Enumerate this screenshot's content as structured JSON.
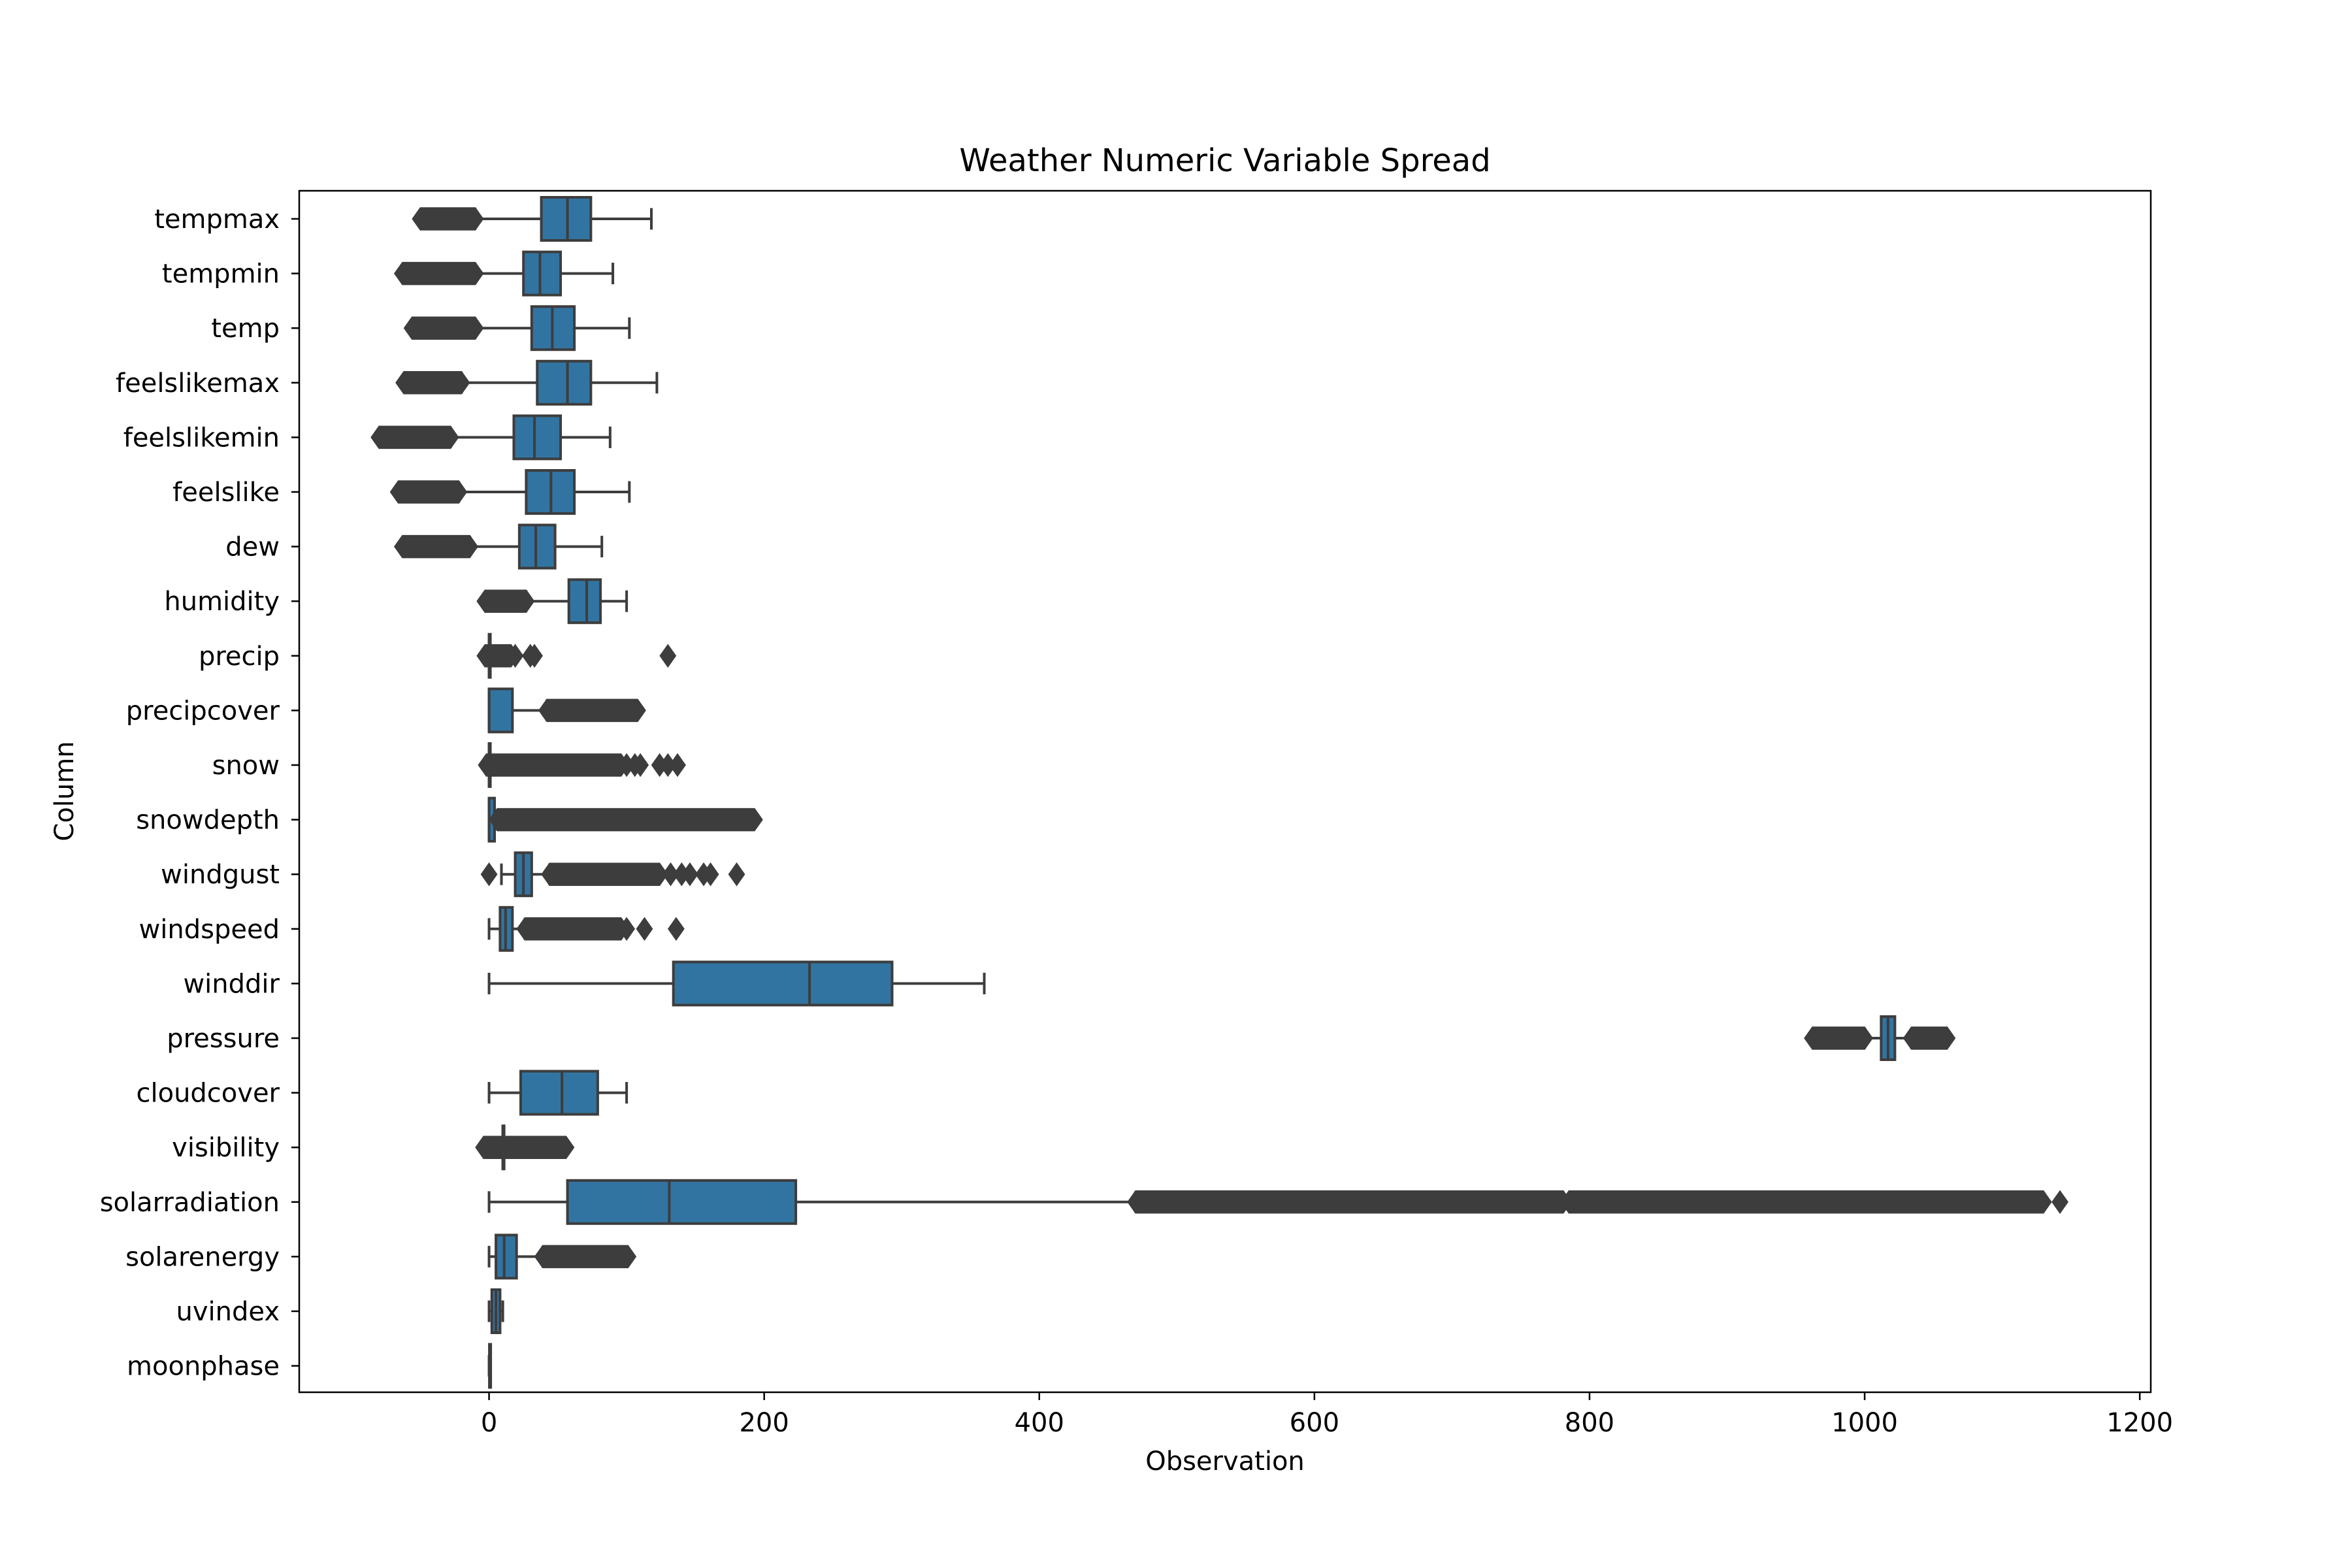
{
  "chart_data": {
    "type": "box",
    "orientation": "horizontal",
    "title": "Weather Numeric Variable Spread",
    "xlabel": "Observation",
    "ylabel": "Column",
    "xlim": [
      -138,
      1208
    ],
    "xticks": [
      0,
      200,
      400,
      600,
      800,
      1000,
      1200
    ],
    "grid": false,
    "legend": "none",
    "box_color": "#3274a1",
    "line_color": "#3d3d3d",
    "series": [
      {
        "name": "tempmax",
        "whisker_low": -10,
        "q1": 38,
        "median": 57,
        "q3": 74,
        "whisker_high": 118,
        "outliers": [
          [
            -50,
            -10
          ]
        ]
      },
      {
        "name": "tempmin",
        "whisker_low": -10,
        "q1": 25,
        "median": 37,
        "q3": 52,
        "whisker_high": 90,
        "outliers": [
          [
            -63,
            -10
          ]
        ]
      },
      {
        "name": "temp",
        "whisker_low": -10,
        "q1": 31,
        "median": 46,
        "q3": 62,
        "whisker_high": 102,
        "outliers": [
          [
            -56,
            -10
          ]
        ]
      },
      {
        "name": "feelslikemax",
        "whisker_low": -20,
        "q1": 35,
        "median": 57,
        "q3": 74,
        "whisker_high": 122,
        "outliers": [
          [
            -62,
            -20
          ]
        ]
      },
      {
        "name": "feelslikemin",
        "whisker_low": -28,
        "q1": 18,
        "median": 33,
        "q3": 52,
        "whisker_high": 88,
        "outliers": [
          [
            -80,
            -28
          ]
        ]
      },
      {
        "name": "feelslike",
        "whisker_low": -22,
        "q1": 27,
        "median": 45,
        "q3": 62,
        "whisker_high": 102,
        "outliers": [
          [
            -66,
            -22
          ]
        ]
      },
      {
        "name": "dew",
        "whisker_low": -14,
        "q1": 22,
        "median": 34,
        "q3": 48,
        "whisker_high": 82,
        "outliers": [
          [
            -63,
            -14
          ]
        ]
      },
      {
        "name": "humidity",
        "whisker_low": 27,
        "q1": 58,
        "median": 71,
        "q3": 81,
        "whisker_high": 100,
        "outliers": [
          [
            -3,
            27
          ]
        ]
      },
      {
        "name": "precip",
        "whisker_low": 0,
        "q1": 0,
        "median": 0,
        "q3": 0,
        "whisker_high": 0,
        "outliers": [
          [
            -3,
            16
          ],
          19,
          30,
          33,
          130
        ]
      },
      {
        "name": "precipcover",
        "whisker_low": 0,
        "q1": 0,
        "median": 0,
        "q3": 17,
        "whisker_high": 42,
        "outliers": [
          [
            42,
            108
          ]
        ]
      },
      {
        "name": "snow",
        "whisker_low": 0,
        "q1": 0,
        "median": 0,
        "q3": 0,
        "whisker_high": 0,
        "outliers": [
          [
            -2,
            96
          ],
          100,
          106,
          110,
          124,
          130,
          137
        ]
      },
      {
        "name": "snowdepth",
        "whisker_low": 0,
        "q1": 0,
        "median": 0,
        "q3": 4,
        "whisker_high": 6,
        "outliers": [
          [
            6,
            193
          ]
        ]
      },
      {
        "name": "windgust",
        "whisker_low": 9,
        "q1": 19,
        "median": 25,
        "q3": 31,
        "whisker_high": 44,
        "outliers": [
          0,
          [
            44,
            124
          ],
          132,
          140,
          146,
          156,
          161,
          180
        ]
      },
      {
        "name": "windspeed",
        "whisker_low": 0,
        "q1": 8,
        "median": 12,
        "q3": 17,
        "whisker_high": 26,
        "outliers": [
          [
            26,
            96
          ],
          100,
          113,
          136
        ]
      },
      {
        "name": "winddir",
        "whisker_low": 0,
        "q1": 134,
        "median": 233,
        "q3": 293,
        "whisker_high": 360,
        "outliers": []
      },
      {
        "name": "pressure",
        "whisker_low": 1000,
        "q1": 1012,
        "median": 1017,
        "q3": 1022,
        "whisker_high": 1034,
        "outliers": [
          [
            962,
            1000
          ],
          [
            1034,
            1060
          ]
        ]
      },
      {
        "name": "cloudcover",
        "whisker_low": 0,
        "q1": 23,
        "median": 53,
        "q3": 79,
        "whisker_high": 100,
        "outliers": []
      },
      {
        "name": "visibility",
        "whisker_low": 10,
        "q1": 10,
        "median": 10,
        "q3": 10,
        "whisker_high": 10,
        "outliers": [
          [
            -4,
            10
          ],
          [
            10,
            56
          ]
        ]
      },
      {
        "name": "solarradiation",
        "whisker_low": 0,
        "q1": 57,
        "median": 131,
        "q3": 223,
        "whisker_high": 470,
        "outliers": [
          [
            470,
            781
          ],
          [
            785,
            1000
          ],
          [
            1000,
            1130
          ],
          1142
        ]
      },
      {
        "name": "solarenergy",
        "whisker_low": 0,
        "q1": 5,
        "median": 11,
        "q3": 20,
        "whisker_high": 39,
        "outliers": [
          [
            39,
            101
          ]
        ]
      },
      {
        "name": "uvindex",
        "whisker_low": 0,
        "q1": 2,
        "median": 5,
        "q3": 8,
        "whisker_high": 10,
        "outliers": []
      },
      {
        "name": "moonphase",
        "whisker_low": 0,
        "q1": 0.25,
        "median": 0.5,
        "q3": 0.75,
        "whisker_high": 1,
        "outliers": []
      }
    ]
  }
}
